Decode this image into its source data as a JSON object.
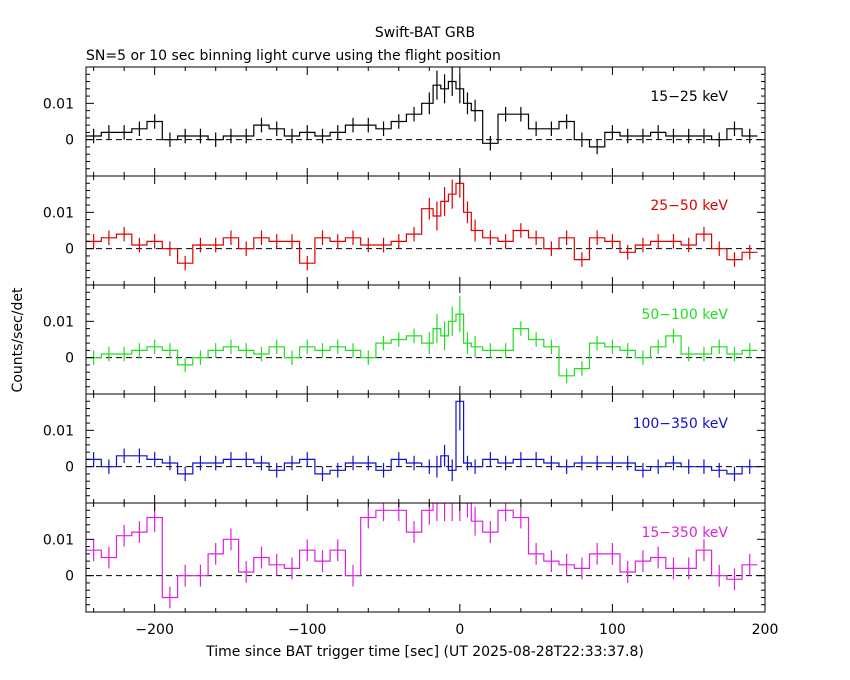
{
  "page": {
    "title": "Swift-BAT GRB",
    "subtitle": "SN=5 or 10 sec binning light curve using the flight position"
  },
  "chart_data": {
    "type": "line",
    "title": "Swift-BAT GRB",
    "subtitle": "SN=5 or 10 sec binning light curve using the flight position",
    "xlabel": "Time since BAT trigger time [sec] (UT 2025-08-28T22:33:37.8)",
    "ylabel": "Counts/sec/det",
    "xlim": [
      -245,
      200
    ],
    "x_ticks": [
      -200,
      -100,
      0,
      100,
      200
    ],
    "x_tick_labels": [
      "−200",
      "−100",
      "0",
      "100",
      "200"
    ],
    "ylim": [
      -0.01,
      0.02
    ],
    "y_ticks": [
      0,
      0.01
    ],
    "y_tick_labels": [
      "0",
      "0.01"
    ],
    "zero_line": "dashed",
    "panels": [
      {
        "name": "15−25 keV",
        "color": "#000000",
        "x": [
          -240,
          -230,
          -220,
          -210,
          -200,
          -190,
          -180,
          -170,
          -160,
          -150,
          -140,
          -130,
          -120,
          -110,
          -100,
          -90,
          -80,
          -70,
          -60,
          -50,
          -40,
          -30,
          -20,
          -15,
          -10,
          -5,
          0,
          5,
          10,
          20,
          30,
          40,
          50,
          60,
          70,
          80,
          90,
          100,
          110,
          120,
          130,
          140,
          150,
          160,
          170,
          180,
          190
        ],
        "y": [
          0.001,
          0.002,
          0.002,
          0.003,
          0.005,
          0.0,
          0.001,
          0.001,
          0.0,
          0.001,
          0.001,
          0.004,
          0.003,
          0.001,
          0.002,
          0.001,
          0.002,
          0.004,
          0.004,
          0.003,
          0.005,
          0.007,
          0.01,
          0.015,
          0.014,
          0.016,
          0.014,
          0.01,
          0.008,
          -0.001,
          0.007,
          0.007,
          0.003,
          0.003,
          0.005,
          0.0,
          -0.002,
          0.002,
          0.001,
          0.001,
          0.002,
          0.001,
          0.001,
          0.001,
          0.0,
          0.003,
          0.001
        ],
        "err": [
          0.002,
          0.002,
          0.002,
          0.002,
          0.002,
          0.002,
          0.002,
          0.002,
          0.002,
          0.002,
          0.002,
          0.002,
          0.002,
          0.002,
          0.002,
          0.002,
          0.002,
          0.002,
          0.002,
          0.002,
          0.002,
          0.002,
          0.003,
          0.004,
          0.004,
          0.004,
          0.004,
          0.003,
          0.003,
          0.002,
          0.002,
          0.002,
          0.002,
          0.002,
          0.002,
          0.002,
          0.002,
          0.002,
          0.002,
          0.002,
          0.002,
          0.002,
          0.002,
          0.002,
          0.002,
          0.002,
          0.002
        ]
      },
      {
        "name": "25−50 keV",
        "color": "#dd0000",
        "x": [
          -240,
          -230,
          -220,
          -210,
          -200,
          -190,
          -180,
          -170,
          -160,
          -150,
          -140,
          -130,
          -120,
          -110,
          -100,
          -90,
          -80,
          -70,
          -60,
          -50,
          -40,
          -30,
          -20,
          -15,
          -10,
          -5,
          0,
          5,
          10,
          20,
          30,
          40,
          50,
          60,
          70,
          80,
          90,
          100,
          110,
          120,
          130,
          140,
          150,
          160,
          170,
          180,
          190
        ],
        "y": [
          0.002,
          0.003,
          0.004,
          0.001,
          0.002,
          0.0,
          -0.004,
          0.001,
          0.001,
          0.003,
          0.0,
          0.003,
          0.002,
          0.002,
          -0.004,
          0.003,
          0.002,
          0.003,
          0.001,
          0.001,
          0.002,
          0.004,
          0.011,
          0.009,
          0.013,
          0.015,
          0.018,
          0.01,
          0.005,
          0.003,
          0.002,
          0.005,
          0.003,
          0.0,
          0.003,
          -0.003,
          0.003,
          0.002,
          -0.001,
          0.001,
          0.002,
          0.002,
          0.001,
          0.004,
          0.0,
          -0.003,
          -0.001
        ],
        "err": [
          0.002,
          0.002,
          0.002,
          0.002,
          0.002,
          0.002,
          0.002,
          0.002,
          0.002,
          0.002,
          0.002,
          0.002,
          0.002,
          0.002,
          0.002,
          0.002,
          0.002,
          0.002,
          0.002,
          0.002,
          0.002,
          0.002,
          0.003,
          0.004,
          0.004,
          0.004,
          0.004,
          0.003,
          0.003,
          0.002,
          0.002,
          0.002,
          0.002,
          0.002,
          0.002,
          0.002,
          0.002,
          0.002,
          0.002,
          0.002,
          0.002,
          0.002,
          0.002,
          0.002,
          0.002,
          0.002,
          0.002
        ]
      },
      {
        "name": "50−100 keV",
        "color": "#22dd22",
        "x": [
          -240,
          -230,
          -220,
          -210,
          -200,
          -190,
          -180,
          -170,
          -160,
          -150,
          -140,
          -130,
          -120,
          -110,
          -100,
          -90,
          -80,
          -70,
          -60,
          -50,
          -40,
          -30,
          -20,
          -15,
          -10,
          -5,
          0,
          5,
          10,
          20,
          30,
          40,
          50,
          60,
          70,
          80,
          90,
          100,
          110,
          120,
          130,
          140,
          150,
          160,
          170,
          180,
          190
        ],
        "y": [
          0.0,
          0.001,
          0.001,
          0.002,
          0.003,
          0.002,
          -0.002,
          0.0,
          0.002,
          0.003,
          0.002,
          0.001,
          0.003,
          0.0,
          0.003,
          0.002,
          0.003,
          0.002,
          0.0,
          0.004,
          0.005,
          0.006,
          0.004,
          0.008,
          0.006,
          0.01,
          0.012,
          0.004,
          0.003,
          0.002,
          0.002,
          0.008,
          0.005,
          0.003,
          -0.005,
          -0.003,
          0.004,
          0.003,
          0.002,
          0.0,
          0.003,
          0.006,
          0.001,
          0.001,
          0.003,
          0.001,
          0.002
        ],
        "err": [
          0.002,
          0.002,
          0.002,
          0.002,
          0.002,
          0.002,
          0.002,
          0.002,
          0.002,
          0.002,
          0.002,
          0.002,
          0.002,
          0.002,
          0.002,
          0.002,
          0.002,
          0.002,
          0.002,
          0.002,
          0.002,
          0.002,
          0.003,
          0.004,
          0.004,
          0.004,
          0.005,
          0.003,
          0.003,
          0.002,
          0.002,
          0.002,
          0.002,
          0.002,
          0.002,
          0.002,
          0.002,
          0.002,
          0.002,
          0.002,
          0.002,
          0.002,
          0.002,
          0.002,
          0.002,
          0.002,
          0.002
        ]
      },
      {
        "name": "100−350 keV",
        "color": "#1111cc",
        "x": [
          -240,
          -230,
          -220,
          -210,
          -200,
          -190,
          -180,
          -170,
          -160,
          -150,
          -140,
          -130,
          -120,
          -110,
          -100,
          -90,
          -80,
          -70,
          -60,
          -50,
          -40,
          -30,
          -20,
          -15,
          -10,
          -5,
          0,
          5,
          10,
          20,
          30,
          40,
          50,
          60,
          70,
          80,
          90,
          100,
          110,
          120,
          130,
          140,
          150,
          160,
          170,
          180,
          190
        ],
        "y": [
          0.002,
          0.0,
          0.003,
          0.003,
          0.002,
          0.001,
          -0.002,
          0.001,
          0.001,
          0.002,
          0.002,
          0.001,
          -0.001,
          0.001,
          0.002,
          -0.002,
          -0.001,
          0.001,
          0.001,
          -0.001,
          0.002,
          0.001,
          0.0,
          0.0,
          0.003,
          -0.001,
          0.018,
          0.001,
          0.0,
          0.002,
          0.001,
          0.002,
          0.002,
          0.001,
          0.0,
          0.001,
          0.001,
          0.001,
          0.001,
          -0.001,
          0.0,
          0.001,
          0.0,
          0.0,
          -0.001,
          -0.002,
          0.0
        ],
        "err": [
          0.002,
          0.002,
          0.002,
          0.002,
          0.002,
          0.002,
          0.002,
          0.002,
          0.002,
          0.002,
          0.002,
          0.002,
          0.002,
          0.002,
          0.002,
          0.002,
          0.002,
          0.002,
          0.002,
          0.002,
          0.002,
          0.002,
          0.002,
          0.003,
          0.003,
          0.003,
          0.008,
          0.002,
          0.002,
          0.002,
          0.002,
          0.002,
          0.002,
          0.002,
          0.002,
          0.002,
          0.002,
          0.002,
          0.002,
          0.002,
          0.002,
          0.002,
          0.002,
          0.002,
          0.002,
          0.002,
          0.002
        ]
      },
      {
        "name": "15−350 keV",
        "color": "#dd22dd",
        "x": [
          -240,
          -230,
          -220,
          -210,
          -200,
          -190,
          -180,
          -170,
          -160,
          -150,
          -140,
          -130,
          -120,
          -110,
          -100,
          -90,
          -80,
          -70,
          -60,
          -50,
          -40,
          -30,
          -20,
          -15,
          -10,
          -5,
          0,
          5,
          10,
          20,
          30,
          40,
          50,
          60,
          70,
          80,
          90,
          100,
          110,
          120,
          130,
          140,
          150,
          160,
          170,
          180,
          190
        ],
        "y": [
          0.007,
          0.005,
          0.011,
          0.012,
          0.016,
          -0.006,
          0.0,
          0.0,
          0.006,
          0.01,
          0.001,
          0.005,
          0.003,
          0.002,
          0.007,
          0.004,
          0.007,
          0.0,
          0.016,
          0.018,
          0.018,
          0.012,
          0.018,
          0.02,
          0.02,
          0.02,
          0.02,
          0.02,
          0.015,
          0.012,
          0.018,
          0.016,
          0.006,
          0.004,
          0.003,
          0.002,
          0.006,
          0.006,
          0.001,
          0.004,
          0.005,
          0.002,
          0.002,
          0.007,
          0.0,
          -0.001,
          0.003
        ],
        "err": [
          0.003,
          0.003,
          0.003,
          0.003,
          0.004,
          0.003,
          0.003,
          0.003,
          0.003,
          0.003,
          0.003,
          0.003,
          0.003,
          0.003,
          0.003,
          0.003,
          0.003,
          0.003,
          0.003,
          0.003,
          0.003,
          0.003,
          0.004,
          0.005,
          0.005,
          0.005,
          0.005,
          0.004,
          0.004,
          0.003,
          0.003,
          0.003,
          0.003,
          0.003,
          0.003,
          0.003,
          0.003,
          0.003,
          0.003,
          0.003,
          0.003,
          0.003,
          0.003,
          0.003,
          0.003,
          0.003,
          0.003
        ]
      }
    ]
  }
}
